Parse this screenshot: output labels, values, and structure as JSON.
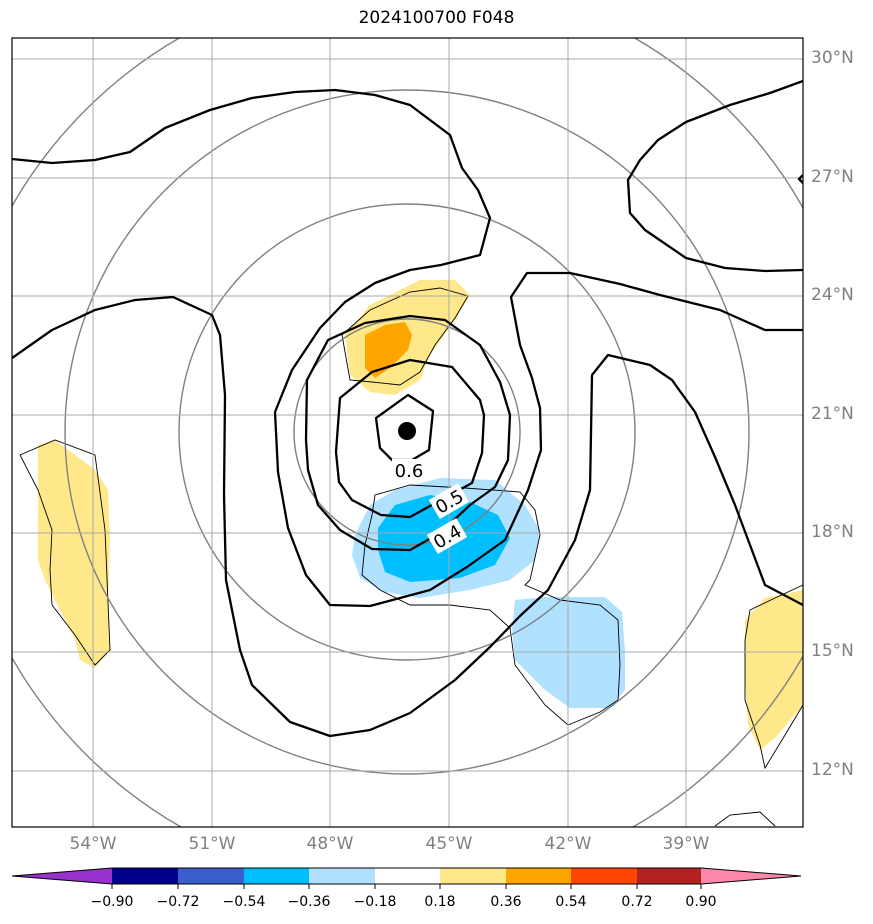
{
  "title": "2024100700 F048",
  "latitude_labels": [
    "30°N",
    "27°N",
    "24°N",
    "21°N",
    "18°N",
    "15°N",
    "12°N"
  ],
  "longitude_labels": [
    "54°W",
    "51°W",
    "48°W",
    "45°W",
    "42°W",
    "39°W"
  ],
  "contour_labels": [
    "0.6",
    "0.5",
    "0.4"
  ],
  "colorbar": {
    "tick_labels": [
      "−0.90",
      "−0.72",
      "−0.54",
      "−0.36",
      "−0.18",
      "0.18",
      "0.36",
      "0.54",
      "0.72",
      "0.90"
    ],
    "colors": [
      "#9932cc",
      "#00008b",
      "#3a5fcd",
      "#00bfff",
      "#b0e2ff",
      "#ffffff",
      "#ffe88a",
      "#ffa500",
      "#ff4500",
      "#b22222",
      "#ff88aa"
    ]
  },
  "colors": {
    "black_contours": "#000000",
    "gray_circles": "#808080",
    "gridlines": "#a9a9a9",
    "center_marker": "#000000"
  }
}
